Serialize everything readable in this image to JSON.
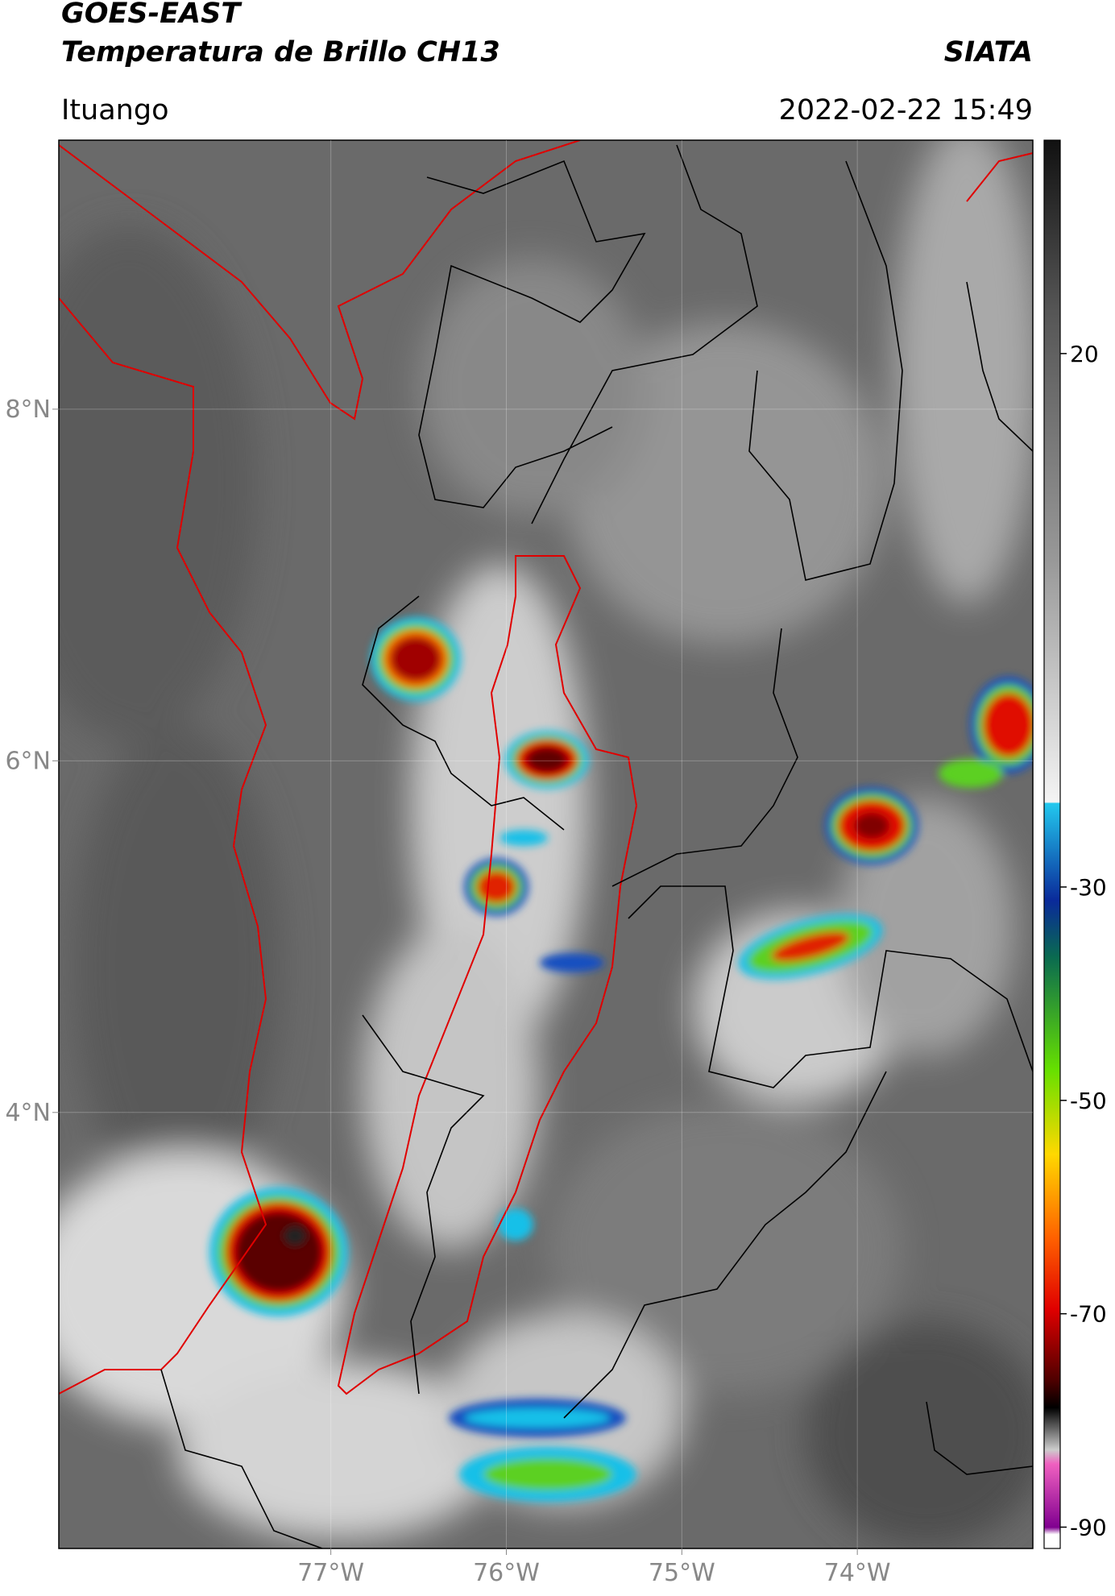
{
  "header": {
    "title": "GOES-EAST",
    "subtitle": "Temperatura de Brillo CH13",
    "source": "SIATA",
    "location": "Ituango",
    "datetime": "2022-02-22 15:49"
  },
  "map": {
    "lonlim": [
      -78.55,
      -73.0
    ],
    "latlim": [
      1.52,
      9.53
    ],
    "lon_ticks": [
      {
        "value": -77,
        "label": "77°W"
      },
      {
        "value": -76,
        "label": "76°W"
      },
      {
        "value": -75,
        "label": "75°W"
      },
      {
        "value": -74,
        "label": "74°W"
      }
    ],
    "lat_ticks": [
      {
        "value": 8,
        "label": "8°N"
      },
      {
        "value": 6,
        "label": "6°N"
      },
      {
        "value": 4,
        "label": "4°N"
      }
    ],
    "grid": true
  },
  "colorbar": {
    "range": [
      -92,
      40
    ],
    "ticks": [
      20,
      -30,
      -50,
      -70,
      -90
    ]
  }
}
